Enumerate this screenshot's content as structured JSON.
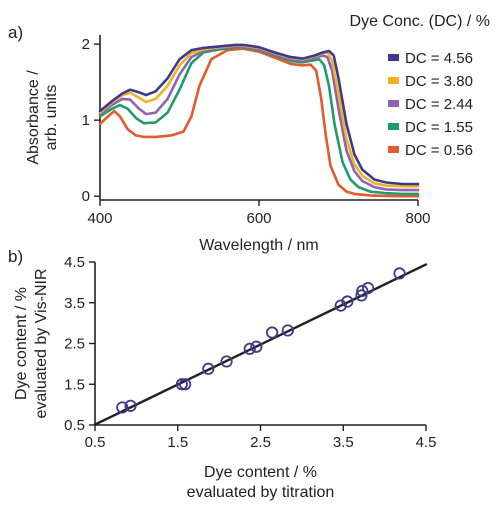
{
  "panel_a_label": "a)",
  "panel_b_label": "b)",
  "chart_data": [
    {
      "type": "line",
      "xlabel": "Wavelength / nm",
      "ylabel_lines": [
        "Absorbance /",
        "arb. units"
      ],
      "xlim": [
        400,
        800
      ],
      "ylim": [
        -0.05,
        2.12
      ],
      "xticks": [
        400,
        600,
        800
      ],
      "yticks": [
        0,
        1,
        2
      ],
      "legend_title": "Dye Conc. (DC) / %",
      "legend_position": "top-right",
      "series": [
        {
          "name": "DC = 4.56",
          "color": "#3d3a8c",
          "x": [
            400,
            415,
            428,
            438,
            448,
            458,
            470,
            485,
            500,
            515,
            530,
            550,
            570,
            580,
            600,
            620,
            640,
            655,
            670,
            680,
            688,
            694,
            700,
            710,
            720,
            730,
            745,
            760,
            780,
            800
          ],
          "y": [
            1.12,
            1.25,
            1.35,
            1.4,
            1.37,
            1.33,
            1.38,
            1.55,
            1.8,
            1.92,
            1.95,
            1.97,
            1.99,
            1.99,
            1.96,
            1.89,
            1.83,
            1.81,
            1.85,
            1.89,
            1.91,
            1.85,
            1.55,
            0.95,
            0.55,
            0.35,
            0.22,
            0.18,
            0.16,
            0.16
          ]
        },
        {
          "name": "DC = 3.80",
          "color": "#f0b323",
          "x": [
            400,
            415,
            428,
            438,
            448,
            458,
            470,
            485,
            500,
            515,
            530,
            550,
            570,
            580,
            600,
            620,
            640,
            655,
            670,
            680,
            686,
            692,
            700,
            710,
            720,
            730,
            745,
            760,
            780,
            800
          ],
          "y": [
            1.1,
            1.23,
            1.33,
            1.36,
            1.3,
            1.24,
            1.28,
            1.45,
            1.72,
            1.88,
            1.93,
            1.96,
            1.98,
            1.98,
            1.95,
            1.88,
            1.82,
            1.8,
            1.84,
            1.88,
            1.89,
            1.78,
            1.35,
            0.75,
            0.42,
            0.27,
            0.17,
            0.14,
            0.13,
            0.13
          ]
        },
        {
          "name": "DC = 2.44",
          "color": "#8e63b5",
          "x": [
            400,
            415,
            428,
            438,
            448,
            458,
            470,
            485,
            500,
            515,
            530,
            550,
            570,
            580,
            600,
            620,
            640,
            655,
            670,
            680,
            686,
            692,
            700,
            710,
            720,
            730,
            745,
            760,
            780,
            800
          ],
          "y": [
            1.08,
            1.2,
            1.28,
            1.27,
            1.16,
            1.08,
            1.1,
            1.28,
            1.6,
            1.83,
            1.91,
            1.95,
            1.97,
            1.97,
            1.93,
            1.86,
            1.8,
            1.78,
            1.82,
            1.85,
            1.83,
            1.65,
            1.15,
            0.6,
            0.33,
            0.2,
            0.12,
            0.09,
            0.08,
            0.08
          ]
        },
        {
          "name": "DC = 1.55",
          "color": "#1f9c6a",
          "x": [
            400,
            415,
            425,
            435,
            445,
            455,
            470,
            485,
            500,
            515,
            530,
            550,
            570,
            580,
            600,
            620,
            640,
            655,
            670,
            676,
            682,
            688,
            695,
            705,
            715,
            725,
            740,
            760,
            780,
            800
          ],
          "y": [
            1.05,
            1.15,
            1.2,
            1.15,
            1.03,
            0.96,
            0.97,
            1.1,
            1.4,
            1.75,
            1.89,
            1.93,
            1.96,
            1.96,
            1.92,
            1.85,
            1.78,
            1.76,
            1.79,
            1.8,
            1.72,
            1.45,
            0.95,
            0.45,
            0.22,
            0.12,
            0.06,
            0.04,
            0.03,
            0.03
          ]
        },
        {
          "name": "DC = 0.56",
          "color": "#e35a2c",
          "x": [
            400,
            410,
            418,
            425,
            435,
            445,
            455,
            470,
            490,
            505,
            515,
            525,
            540,
            560,
            580,
            600,
            620,
            640,
            655,
            665,
            672,
            678,
            684,
            690,
            700,
            710,
            720,
            740,
            770,
            800
          ],
          "y": [
            0.95,
            1.05,
            1.12,
            1.05,
            0.88,
            0.8,
            0.78,
            0.78,
            0.8,
            0.85,
            1.05,
            1.45,
            1.8,
            1.92,
            1.94,
            1.9,
            1.82,
            1.74,
            1.72,
            1.73,
            1.65,
            1.3,
            0.8,
            0.4,
            0.15,
            0.06,
            0.03,
            0.01,
            0.0,
            0.0
          ]
        }
      ]
    },
    {
      "type": "scatter",
      "xlabel_lines": [
        "Dye content / %",
        "evaluated by titration"
      ],
      "ylabel_lines": [
        "Dye content / %",
        "evaluated by Vis-NIR"
      ],
      "xlim": [
        0.5,
        4.5
      ],
      "ylim": [
        0.5,
        4.5
      ],
      "xticks": [
        0.5,
        1.5,
        2.5,
        3.5,
        4.5
      ],
      "yticks": [
        0.5,
        1.5,
        2.5,
        3.5,
        4.5
      ],
      "xtick_labels": [
        "0.5",
        "1.5",
        "2.5",
        "3.5",
        "4.5"
      ],
      "ytick_labels": [
        "0.5",
        "1.5",
        "2.5",
        "3.5",
        "4.5"
      ],
      "marker_color": "#3d3a8c",
      "points_x": [
        0.83,
        0.93,
        1.55,
        1.59,
        1.87,
        2.09,
        2.37,
        2.45,
        2.64,
        2.83,
        3.47,
        3.55,
        3.72,
        3.73,
        3.8,
        4.18
      ],
      "points_y": [
        0.93,
        0.97,
        1.5,
        1.5,
        1.88,
        2.06,
        2.37,
        2.42,
        2.77,
        2.82,
        3.43,
        3.53,
        3.68,
        3.79,
        3.86,
        4.22
      ],
      "fit_line": {
        "x": [
          0.5,
          4.5
        ],
        "y": [
          0.51,
          4.44
        ],
        "color": "#231f20"
      }
    }
  ]
}
